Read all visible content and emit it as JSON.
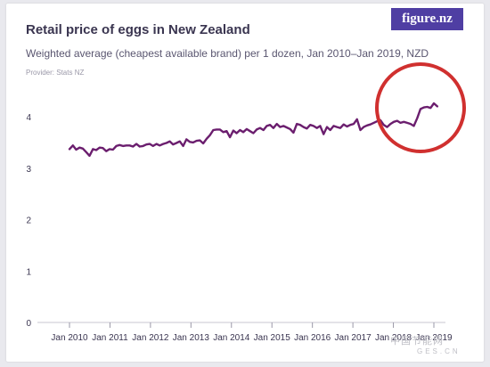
{
  "header": {
    "title": "Retail price of eggs in New Zealand",
    "subtitle": "Weighted average (cheapest available brand) per 1 dozen, Jan 2010–Jan 2019, NZD",
    "provider": "Provider: Stats NZ",
    "logo": "figure.nz"
  },
  "watermark": {
    "line1": "中国节能网",
    "line2": "GES.CN"
  },
  "colors": {
    "series": "#6b1e6e",
    "highlight_circle": "#d0302f",
    "axis_text": "#3a3550",
    "logo_bg": "#4f3ea3"
  },
  "chart_data": {
    "type": "line",
    "xlabel": "",
    "ylabel": "",
    "ylim": [
      0,
      4.3
    ],
    "yticks": [
      0,
      1,
      2,
      3,
      4
    ],
    "grid": false,
    "x_ticks": [
      "Jan 2010",
      "Jan 2011",
      "Jan 2012",
      "Jan 2013",
      "Jan 2014",
      "Jan 2015",
      "Jan 2016",
      "Jan 2017",
      "Jan 2018",
      "Jan 2019"
    ],
    "x_start": "2010-01",
    "x_end": "2019-02",
    "series": [
      {
        "values": [
          3.37,
          3.44,
          3.36,
          3.4,
          3.38,
          3.31,
          3.24,
          3.37,
          3.35,
          3.4,
          3.39,
          3.33,
          3.37,
          3.36,
          3.43,
          3.45,
          3.43,
          3.44,
          3.44,
          3.42,
          3.47,
          3.42,
          3.43,
          3.46,
          3.47,
          3.43,
          3.47,
          3.44,
          3.47,
          3.49,
          3.52,
          3.46,
          3.49,
          3.52,
          3.43,
          3.56,
          3.51,
          3.5,
          3.53,
          3.54,
          3.48,
          3.57,
          3.64,
          3.74,
          3.75,
          3.75,
          3.7,
          3.72,
          3.6,
          3.73,
          3.68,
          3.74,
          3.7,
          3.76,
          3.72,
          3.68,
          3.75,
          3.78,
          3.74,
          3.82,
          3.84,
          3.78,
          3.86,
          3.8,
          3.82,
          3.79,
          3.76,
          3.69,
          3.86,
          3.84,
          3.8,
          3.77,
          3.84,
          3.82,
          3.78,
          3.82,
          3.66,
          3.8,
          3.74,
          3.82,
          3.8,
          3.78,
          3.85,
          3.81,
          3.84,
          3.86,
          3.95,
          3.74,
          3.8,
          3.83,
          3.85,
          3.88,
          3.91,
          3.93,
          3.84,
          3.8,
          3.86,
          3.9,
          3.92,
          3.88,
          3.9,
          3.88,
          3.86,
          3.82,
          3.97,
          4.15,
          4.18,
          4.19,
          4.17,
          4.26,
          4.2
        ]
      }
    ]
  }
}
